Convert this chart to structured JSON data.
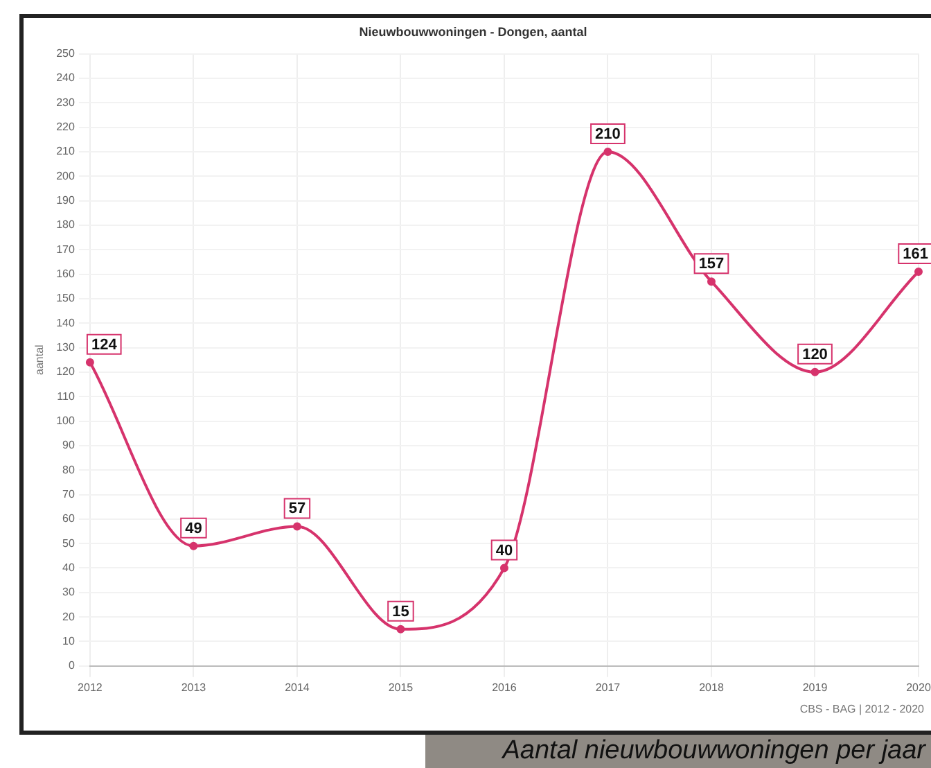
{
  "chart_data": {
    "type": "line",
    "title": "Nieuwbouwwoningen - Dongen, aantal",
    "ylabel": "aantal",
    "categories": [
      "2012",
      "2013",
      "2014",
      "2015",
      "2016",
      "2017",
      "2018",
      "2019",
      "2020"
    ],
    "series": [
      {
        "color": "#d6336c",
        "values": [
          124,
          49,
          57,
          15,
          40,
          210,
          157,
          120,
          161
        ]
      }
    ],
    "ylim": [
      0,
      250
    ],
    "yticks": [
      0,
      10,
      20,
      30,
      40,
      50,
      60,
      70,
      80,
      90,
      100,
      110,
      120,
      130,
      140,
      150,
      160,
      170,
      180,
      190,
      200,
      210,
      220,
      230,
      240,
      250
    ],
    "grid": true,
    "legend": false,
    "marker": "circle",
    "line_style": "solid",
    "data_labels": true,
    "annotations": [
      "CBS - BAG | 2012 - 2020",
      "Aantal nieuwbouwwoningen per jaar"
    ]
  }
}
